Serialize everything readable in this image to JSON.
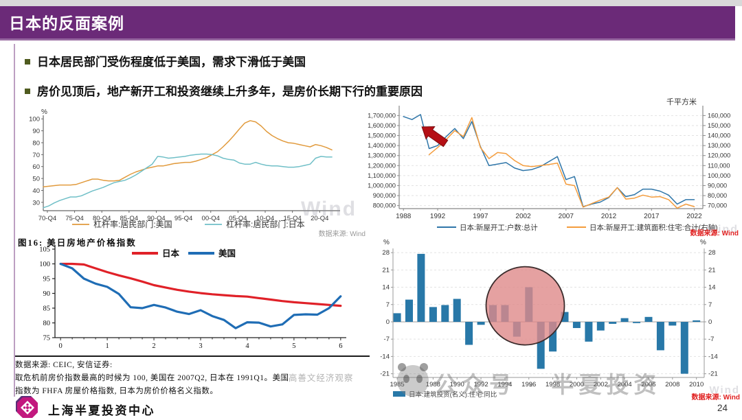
{
  "slide": {
    "title": "日本的反面案例",
    "bullets": [
      "日本居民部门受伤程度低于美国，需求下滑低于美国",
      "房价见顶后，地产新开工和投资继续上升多年，是房价长期下行的重要原因"
    ],
    "accent_color": "#6B2A78",
    "footer_org": "上海半夏投资中心",
    "page_number": "24"
  },
  "watermarks": {
    "wind_word": "Wind",
    "gaoshanwen": "☺ 高善文经济观察",
    "banxia_account": "公众号 · 半夏投资"
  },
  "chart_data": [
    {
      "id": "household-leverage",
      "type": "line",
      "unit": "%",
      "xlim": [
        1970,
        2024.5
      ],
      "x_tick_pos": [
        1970.75,
        1975.75,
        1980.75,
        1985.75,
        1990.75,
        1995.75,
        2000.75,
        2005.75,
        2010.75,
        2015.75,
        2020.75
      ],
      "x_tick_labels": [
        "70-Q4",
        "75-Q4",
        "80-Q4",
        "85-Q4",
        "90-Q4",
        "95-Q4",
        "00-Q4",
        "05-Q4",
        "10-Q4",
        "15-Q4",
        "20-Q4"
      ],
      "ylim": [
        23,
        103
      ],
      "y_ticks": [
        30,
        40,
        50,
        60,
        70,
        80,
        90,
        100
      ],
      "grid": false,
      "legend_position": "bottom",
      "series": [
        {
          "name": "杠杆率:居民部门:美国",
          "color": "#E19A3C",
          "x_start": 1970,
          "x_step": 1,
          "values": [
            43,
            43.5,
            44,
            44.5,
            44.5,
            44.5,
            45,
            46.5,
            48,
            49.5,
            49.5,
            48.5,
            48,
            48,
            48.5,
            51,
            53.5,
            55.5,
            57,
            58.5,
            59.5,
            60.5,
            60.5,
            61.5,
            62.5,
            63,
            63.5,
            63.5,
            64.5,
            66,
            67.5,
            70,
            72.5,
            76.5,
            81,
            86,
            91.5,
            96.5,
            98.5,
            97.5,
            94,
            89.5,
            86,
            83.5,
            81.5,
            80,
            79.5,
            78.5,
            77.5,
            76.5,
            78.5,
            77.5,
            76,
            74
          ]
        },
        {
          "name": "杠杆率:居民部门:日本",
          "color": "#6FBFC7",
          "x_start": 1970,
          "x_step": 1,
          "values": [
            25.5,
            27,
            29.5,
            31.5,
            33,
            34.5,
            34.5,
            35.5,
            37.5,
            39.5,
            41,
            42.5,
            44.5,
            46.5,
            47.5,
            48.5,
            50.5,
            53,
            56,
            59,
            62,
            68.5,
            68,
            67,
            67.5,
            68,
            68.5,
            69.5,
            70,
            70.5,
            70.5,
            70,
            69,
            67,
            66,
            65.5,
            63,
            62,
            62,
            63.5,
            62,
            61,
            60.5,
            60.5,
            60,
            59.5,
            59.5,
            60,
            61,
            62,
            67,
            68.5,
            68,
            68
          ]
        }
      ],
      "source_note": "数据来源: Wind"
    },
    {
      "id": "japan-new-housing-starts",
      "type": "line",
      "right_axis_title": "千平方米",
      "xlim": [
        1987.5,
        2023
      ],
      "x_ticks": [
        1988,
        1992,
        1997,
        2002,
        2007,
        2012,
        2017,
        2022
      ],
      "left_ylim": [
        770000,
        1730000
      ],
      "left_y_ticks": [
        800000,
        900000,
        1000000,
        1100000,
        1200000,
        1300000,
        1400000,
        1500000,
        1600000,
        1700000
      ],
      "right_ylim": [
        67000,
        163000
      ],
      "right_y_ticks": [
        70000,
        80000,
        90000,
        100000,
        110000,
        120000,
        130000,
        140000,
        150000,
        160000
      ],
      "grid": true,
      "legend_position": "bottom",
      "series": [
        {
          "name": "日本:新屋开工:户数:总计",
          "color": "#2E75A8",
          "axis": "left",
          "x_start": 1988,
          "x_step": 1,
          "values": [
            1690000,
            1660000,
            1710000,
            1370000,
            1400000,
            1490000,
            1570000,
            1470000,
            1640000,
            1390000,
            1200000,
            1215000,
            1230000,
            1175000,
            1150000,
            1160000,
            1190000,
            1240000,
            1290000,
            1060000,
            1090000,
            790000,
            815000,
            835000,
            880000,
            980000,
            890000,
            910000,
            965000,
            965000,
            945000,
            905000,
            815000,
            860000,
            860000
          ]
        },
        {
          "name": "日本:新屋开工:建筑面积:住宅:合计(右轴)",
          "color": "#F49C3C",
          "axis": "right",
          "x_start": 1991,
          "x_step": 1,
          "values": [
            121000,
            128000,
            136000,
            145000,
            139000,
            158000,
            128000,
            117000,
            123000,
            122000,
            115000,
            110000,
            109000,
            110000,
            111000,
            112500,
            91500,
            90000,
            68500,
            72000,
            75500,
            78500,
            88000,
            76500,
            77500,
            80500,
            78500,
            79000,
            76000,
            67500,
            71500,
            69000
          ]
        }
      ],
      "annotation": {
        "type": "arrow",
        "x": 1990,
        "y": 1710000,
        "color": "#B50F15"
      },
      "source_note": "数据来源: Wind"
    },
    {
      "id": "us-japan-home-price-index",
      "type": "line",
      "title": "图16: 美日房地产价格指数",
      "xlim": [
        -0.12,
        6.12
      ],
      "x_ticks": [
        0,
        1,
        2,
        3,
        4,
        5,
        6
      ],
      "ylim": [
        75,
        105
      ],
      "y_ticks": [
        75,
        80,
        85,
        90,
        95,
        100,
        105
      ],
      "grid": false,
      "legend_position": "top-inside",
      "series": [
        {
          "name": "日本",
          "color": "#E02128",
          "x_start": 0,
          "x_step": 0.25,
          "values": [
            100,
            100,
            99.8,
            98.5,
            97.2,
            96.1,
            95.1,
            94,
            92.8,
            92,
            91.2,
            90.6,
            90.1,
            89.7,
            89.4,
            89.1,
            88.9,
            88.4,
            87.9,
            87.4,
            87,
            86.7,
            86.4,
            86.1,
            85.8
          ]
        },
        {
          "name": "美国",
          "color": "#1F6DB5",
          "x_start": 0,
          "x_step": 0.25,
          "values": [
            100,
            98.5,
            95,
            93.3,
            92.2,
            89.8,
            85.3,
            85,
            86.1,
            85.2,
            83.8,
            83,
            84.3,
            82.3,
            81,
            78.2,
            80.2,
            80.1,
            78.8,
            79.5,
            82.7,
            82.9,
            82.8,
            85,
            89
          ]
        }
      ],
      "notes": [
        "数据来源: CEIC, 安信证券:",
        "取危机前房价指数最高的时候为 100, 美国在 2007Q2, 日本在 1991Q1。美国",
        "指数为 FHFA 房屋价格指数, 日本为房价价格名义指数。"
      ]
    },
    {
      "id": "japan-residential-construction-investment-yoy",
      "type": "bar",
      "unit": "%",
      "x_start": 1985,
      "categories": [
        1985,
        1986,
        1987,
        1988,
        1989,
        1990,
        1991,
        1992,
        1993,
        1994,
        1995,
        1996,
        1997,
        1998,
        1999,
        2000,
        2001,
        2002,
        2003,
        2004,
        2005,
        2006,
        2007,
        2008,
        2009,
        2010
      ],
      "values": [
        3.5,
        9,
        27.5,
        6,
        6.8,
        9.3,
        -9.3,
        -1.2,
        6.8,
        6.8,
        -6,
        14,
        -19,
        -12,
        4,
        -2.5,
        -8,
        -3.5,
        -0.8,
        1.5,
        -0.5,
        2,
        -11.5,
        -1.5,
        -21,
        0.6
      ],
      "x_tick_years": [
        1985,
        1988,
        1990,
        1992,
        1994,
        1996,
        1998,
        2000,
        2002,
        2004,
        2006,
        2008,
        2010
      ],
      "x_tick_labels": [
        "1985",
        "1988",
        "1990",
        "1992",
        "1994",
        "1996",
        "1998",
        "2000",
        "2002",
        "2004",
        "2006",
        "2008",
        "2010"
      ],
      "ylim": [
        -22.5,
        29.7
      ],
      "y_ticks": [
        -21,
        -14,
        -7,
        0,
        7,
        14,
        21,
        28
      ],
      "grid": true,
      "bar_color": "#2878A8",
      "legend": [
        {
          "name": "日本:建筑投资(名义):住宅:同比",
          "color": "#2878A8"
        }
      ],
      "highlight_circle": {
        "x_year": 1995.7,
        "y_value": 6.5,
        "radius": 57,
        "fill": "#DE8A8A",
        "fill_opacity": 0.8,
        "stroke": "#3A2B2B"
      },
      "source_note": "数据来源: Wind"
    }
  ]
}
